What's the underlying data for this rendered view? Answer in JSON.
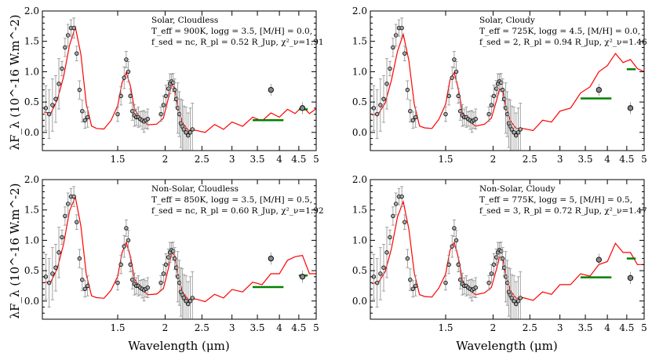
{
  "figure": {
    "xlabel": "Wavelength (μm)",
    "ylabel": "λF_λ (10^-16 W.m^-2)"
  },
  "style": {
    "model_color": "#ff0000",
    "photometry_color": "#008000",
    "data_marker_fill": "#a8a8a8",
    "errorbar_color": "#8c8c8c"
  },
  "chart_data": [
    {
      "type": "line",
      "panel": "top-left",
      "annotation": [
        "Solar, Cloudless",
        "T_eff = 900K, logg = 3.5, [M/H] = 0.0,",
        "f_sed = nc, R_pl = 0.52 R_Jup, χ²_ν=1.91"
      ],
      "xlim": [
        0.95,
        5.0
      ],
      "ylim": [
        -0.3,
        2.0
      ],
      "xscale": "log",
      "xticks": [
        1.5,
        2,
        2.5,
        3,
        3.5,
        4,
        4.5,
        5
      ],
      "yticks": [
        0.0,
        0.5,
        1.0,
        1.5,
        2.0
      ],
      "model": {
        "x": [
          0.96,
          1.0,
          1.04,
          1.08,
          1.12,
          1.16,
          1.2,
          1.24,
          1.28,
          1.32,
          1.38,
          1.44,
          1.5,
          1.54,
          1.58,
          1.62,
          1.66,
          1.72,
          1.8,
          1.9,
          1.98,
          2.04,
          2.08,
          2.12,
          2.16,
          2.22,
          2.3,
          2.4,
          2.55,
          2.7,
          2.85,
          3.0,
          3.2,
          3.4,
          3.6,
          3.8,
          4.0,
          4.2,
          4.4,
          4.6,
          4.8,
          5.0
        ],
        "y": [
          0.35,
          0.3,
          0.55,
          0.9,
          1.45,
          1.72,
          1.3,
          0.45,
          0.12,
          0.05,
          0.07,
          0.18,
          0.45,
          0.8,
          1.0,
          0.75,
          0.4,
          0.22,
          0.14,
          0.12,
          0.25,
          0.55,
          0.8,
          0.72,
          0.45,
          0.15,
          0.05,
          0.02,
          0.05,
          0.08,
          0.1,
          0.12,
          0.15,
          0.2,
          0.24,
          0.27,
          0.3,
          0.33,
          0.36,
          0.38,
          0.36,
          0.34
        ]
      },
      "spectrum": {
        "x": [
          0.97,
          0.99,
          1.01,
          1.03,
          1.05,
          1.07,
          1.09,
          1.11,
          1.13,
          1.15,
          1.17,
          1.19,
          1.21,
          1.23,
          1.25,
          1.5,
          1.53,
          1.56,
          1.58,
          1.6,
          1.62,
          1.64,
          1.66,
          1.68,
          1.7,
          1.72,
          1.74,
          1.76,
          1.78,
          1.8,
          1.95,
          1.98,
          2.01,
          2.04,
          2.06,
          2.08,
          2.1,
          2.12,
          2.14,
          2.16,
          2.18,
          2.2,
          2.22,
          2.24,
          2.27,
          2.3,
          2.33,
          2.36
        ],
        "y": [
          0.4,
          0.3,
          0.45,
          0.55,
          0.8,
          1.05,
          1.4,
          1.6,
          1.72,
          1.72,
          1.3,
          0.7,
          0.35,
          0.2,
          0.25,
          0.3,
          0.6,
          0.9,
          1.2,
          1.0,
          0.6,
          0.35,
          0.28,
          0.25,
          0.25,
          0.22,
          0.2,
          0.18,
          0.2,
          0.22,
          0.3,
          0.45,
          0.6,
          0.72,
          0.8,
          0.84,
          0.82,
          0.7,
          0.55,
          0.4,
          0.3,
          0.15,
          0.1,
          0.05,
          0.0,
          -0.05,
          0.0,
          0.05
        ]
      },
      "photometry": [
        {
          "x": 3.8,
          "y": 0.7
        },
        {
          "x": 4.6,
          "y": 0.4
        }
      ],
      "bands": [
        {
          "x0": 3.4,
          "x1": 4.1,
          "y": 0.2
        },
        {
          "x0": 4.5,
          "x1": 4.75,
          "y": 0.38
        }
      ]
    },
    {
      "type": "line",
      "panel": "top-right",
      "annotation": [
        "Solar, Cloudy",
        "T_eff = 725K, logg = 4.5, [M/H] = 0.0,",
        "f_sed = 2, R_pl = 0.94 R_Jup, χ²_ν=1.46"
      ],
      "xlim": [
        0.95,
        5.0
      ],
      "ylim": [
        -0.3,
        2.0
      ],
      "xscale": "log",
      "xticks": [
        1.5,
        2,
        2.5,
        3,
        3.5,
        4,
        4.5,
        5
      ],
      "yticks": [
        0.0,
        0.5,
        1.0,
        1.5,
        2.0
      ],
      "model": {
        "x": [
          0.96,
          1.0,
          1.04,
          1.08,
          1.12,
          1.16,
          1.2,
          1.24,
          1.28,
          1.32,
          1.38,
          1.44,
          1.5,
          1.54,
          1.58,
          1.62,
          1.66,
          1.72,
          1.8,
          1.9,
          1.98,
          2.04,
          2.08,
          2.12,
          2.16,
          2.22,
          2.3,
          2.4,
          2.55,
          2.7,
          2.85,
          3.0,
          3.2,
          3.4,
          3.6,
          3.8,
          4.0,
          4.2,
          4.4,
          4.6,
          4.8,
          5.0
        ],
        "y": [
          0.3,
          0.3,
          0.5,
          0.85,
          1.35,
          1.6,
          1.2,
          0.45,
          0.12,
          0.06,
          0.08,
          0.2,
          0.48,
          0.85,
          1.0,
          0.7,
          0.35,
          0.18,
          0.12,
          0.12,
          0.25,
          0.5,
          0.72,
          0.68,
          0.45,
          0.18,
          0.08,
          0.05,
          0.08,
          0.15,
          0.22,
          0.3,
          0.45,
          0.6,
          0.8,
          0.95,
          1.15,
          1.25,
          1.2,
          1.15,
          1.1,
          0.95
        ]
      },
      "spectrum": {
        "x": [
          0.97,
          0.99,
          1.01,
          1.03,
          1.05,
          1.07,
          1.09,
          1.11,
          1.13,
          1.15,
          1.17,
          1.19,
          1.21,
          1.23,
          1.25,
          1.5,
          1.53,
          1.56,
          1.58,
          1.6,
          1.62,
          1.64,
          1.66,
          1.68,
          1.7,
          1.72,
          1.74,
          1.76,
          1.78,
          1.8,
          1.95,
          1.98,
          2.01,
          2.04,
          2.06,
          2.08,
          2.1,
          2.12,
          2.14,
          2.16,
          2.18,
          2.2,
          2.22,
          2.24,
          2.27,
          2.3,
          2.33,
          2.36
        ],
        "y": [
          0.4,
          0.3,
          0.45,
          0.55,
          0.8,
          1.05,
          1.4,
          1.6,
          1.72,
          1.72,
          1.3,
          0.7,
          0.35,
          0.2,
          0.25,
          0.3,
          0.6,
          0.9,
          1.2,
          1.0,
          0.6,
          0.35,
          0.28,
          0.25,
          0.25,
          0.22,
          0.2,
          0.18,
          0.2,
          0.22,
          0.3,
          0.45,
          0.6,
          0.72,
          0.8,
          0.84,
          0.82,
          0.7,
          0.55,
          0.4,
          0.3,
          0.15,
          0.1,
          0.05,
          0.0,
          -0.05,
          0.0,
          0.05
        ]
      },
      "photometry": [
        {
          "x": 3.8,
          "y": 0.7
        },
        {
          "x": 4.6,
          "y": 0.4
        }
      ],
      "bands": [
        {
          "x0": 3.4,
          "x1": 4.1,
          "y": 0.56
        },
        {
          "x0": 4.5,
          "x1": 4.75,
          "y": 1.04
        }
      ]
    },
    {
      "type": "line",
      "panel": "bottom-left",
      "annotation": [
        "Non-Solar, Cloudless",
        "T_eff = 850K, logg = 3.5, [M/H] = 0.5,",
        "f_sed = nc, R_pl = 0.60 R_Jup, χ²_ν=1.92"
      ],
      "xlim": [
        0.95,
        5.0
      ],
      "ylim": [
        -0.3,
        2.0
      ],
      "xscale": "log",
      "xticks": [
        1.5,
        2,
        2.5,
        3,
        3.5,
        4,
        4.5,
        5
      ],
      "yticks": [
        0.0,
        0.5,
        1.0,
        1.5,
        2.0
      ],
      "model": {
        "x": [
          0.96,
          1.0,
          1.04,
          1.08,
          1.12,
          1.16,
          1.2,
          1.24,
          1.28,
          1.32,
          1.38,
          1.44,
          1.5,
          1.54,
          1.58,
          1.62,
          1.66,
          1.72,
          1.8,
          1.9,
          1.98,
          2.04,
          2.08,
          2.12,
          2.16,
          2.22,
          2.3,
          2.4,
          2.55,
          2.7,
          2.85,
          3.0,
          3.2,
          3.4,
          3.6,
          3.8,
          4.0,
          4.2,
          4.4,
          4.6,
          4.8,
          5.0
        ],
        "y": [
          0.32,
          0.3,
          0.55,
          0.92,
          1.5,
          1.7,
          1.25,
          0.42,
          0.1,
          0.04,
          0.06,
          0.16,
          0.42,
          0.78,
          0.98,
          0.72,
          0.38,
          0.2,
          0.12,
          0.1,
          0.22,
          0.52,
          0.8,
          0.74,
          0.46,
          0.14,
          0.04,
          0.02,
          0.04,
          0.06,
          0.1,
          0.14,
          0.2,
          0.26,
          0.32,
          0.4,
          0.5,
          0.62,
          0.78,
          0.7,
          0.5,
          0.4
        ]
      },
      "spectrum": {
        "x": [
          0.97,
          0.99,
          1.01,
          1.03,
          1.05,
          1.07,
          1.09,
          1.11,
          1.13,
          1.15,
          1.17,
          1.19,
          1.21,
          1.23,
          1.25,
          1.5,
          1.53,
          1.56,
          1.58,
          1.6,
          1.62,
          1.64,
          1.66,
          1.68,
          1.7,
          1.72,
          1.74,
          1.76,
          1.78,
          1.8,
          1.95,
          1.98,
          2.01,
          2.04,
          2.06,
          2.08,
          2.1,
          2.12,
          2.14,
          2.16,
          2.18,
          2.2,
          2.22,
          2.24,
          2.27,
          2.3,
          2.33,
          2.36
        ],
        "y": [
          0.4,
          0.3,
          0.45,
          0.55,
          0.8,
          1.05,
          1.4,
          1.6,
          1.72,
          1.72,
          1.3,
          0.7,
          0.35,
          0.2,
          0.25,
          0.3,
          0.6,
          0.9,
          1.2,
          1.0,
          0.6,
          0.35,
          0.28,
          0.25,
          0.25,
          0.22,
          0.2,
          0.18,
          0.2,
          0.22,
          0.3,
          0.45,
          0.6,
          0.72,
          0.8,
          0.84,
          0.82,
          0.7,
          0.55,
          0.4,
          0.3,
          0.15,
          0.1,
          0.05,
          0.0,
          -0.05,
          0.0,
          0.05
        ]
      },
      "photometry": [
        {
          "x": 3.8,
          "y": 0.7
        },
        {
          "x": 4.6,
          "y": 0.4
        }
      ],
      "bands": [
        {
          "x0": 3.4,
          "x1": 4.1,
          "y": 0.23
        },
        {
          "x0": 4.5,
          "x1": 4.75,
          "y": 0.42
        }
      ]
    },
    {
      "type": "line",
      "panel": "bottom-right",
      "annotation": [
        "Non-Solar, Cloudy",
        "T_eff = 775K, logg = 5, [M/H] = 0.5,",
        "f_sed = 3, R_pl = 0.72 R_Jup, χ²_ν=1.47"
      ],
      "xlim": [
        0.95,
        5.0
      ],
      "ylim": [
        -0.3,
        2.0
      ],
      "xscale": "log",
      "xticks": [
        1.5,
        2,
        2.5,
        3,
        3.5,
        4,
        4.5,
        5
      ],
      "yticks": [
        0.0,
        0.5,
        1.0,
        1.5,
        2.0
      ],
      "model": {
        "x": [
          0.96,
          1.0,
          1.04,
          1.08,
          1.12,
          1.16,
          1.2,
          1.24,
          1.28,
          1.32,
          1.38,
          1.44,
          1.5,
          1.54,
          1.58,
          1.62,
          1.66,
          1.72,
          1.8,
          1.9,
          1.98,
          2.04,
          2.08,
          2.12,
          2.16,
          2.22,
          2.3,
          2.4,
          2.55,
          2.7,
          2.85,
          3.0,
          3.2,
          3.4,
          3.6,
          3.8,
          4.0,
          4.2,
          4.4,
          4.6,
          4.8,
          5.0
        ],
        "y": [
          0.3,
          0.3,
          0.5,
          0.85,
          1.4,
          1.62,
          1.2,
          0.45,
          0.12,
          0.06,
          0.08,
          0.2,
          0.46,
          0.82,
          0.98,
          0.7,
          0.36,
          0.18,
          0.12,
          0.12,
          0.24,
          0.5,
          0.74,
          0.7,
          0.45,
          0.16,
          0.06,
          0.04,
          0.06,
          0.1,
          0.16,
          0.22,
          0.32,
          0.4,
          0.46,
          0.55,
          0.7,
          0.9,
          0.85,
          0.75,
          0.65,
          0.55
        ]
      },
      "spectrum": {
        "x": [
          0.97,
          0.99,
          1.01,
          1.03,
          1.05,
          1.07,
          1.09,
          1.11,
          1.13,
          1.15,
          1.17,
          1.19,
          1.21,
          1.23,
          1.25,
          1.5,
          1.53,
          1.56,
          1.58,
          1.6,
          1.62,
          1.64,
          1.66,
          1.68,
          1.7,
          1.72,
          1.74,
          1.76,
          1.78,
          1.8,
          1.95,
          1.98,
          2.01,
          2.04,
          2.06,
          2.08,
          2.1,
          2.12,
          2.14,
          2.16,
          2.18,
          2.2,
          2.22,
          2.24,
          2.27,
          2.3,
          2.33,
          2.36
        ],
        "y": [
          0.4,
          0.3,
          0.45,
          0.55,
          0.8,
          1.05,
          1.4,
          1.6,
          1.72,
          1.72,
          1.3,
          0.7,
          0.35,
          0.2,
          0.25,
          0.3,
          0.6,
          0.9,
          1.2,
          1.0,
          0.6,
          0.35,
          0.28,
          0.25,
          0.25,
          0.22,
          0.2,
          0.18,
          0.2,
          0.22,
          0.3,
          0.45,
          0.6,
          0.72,
          0.8,
          0.84,
          0.82,
          0.7,
          0.55,
          0.4,
          0.3,
          0.15,
          0.1,
          0.05,
          0.0,
          -0.05,
          0.0,
          0.05
        ]
      },
      "photometry": [
        {
          "x": 3.8,
          "y": 0.68
        },
        {
          "x": 4.6,
          "y": 0.38
        }
      ],
      "bands": [
        {
          "x0": 3.4,
          "x1": 4.1,
          "y": 0.39
        },
        {
          "x0": 4.5,
          "x1": 4.75,
          "y": 0.7
        }
      ]
    }
  ]
}
